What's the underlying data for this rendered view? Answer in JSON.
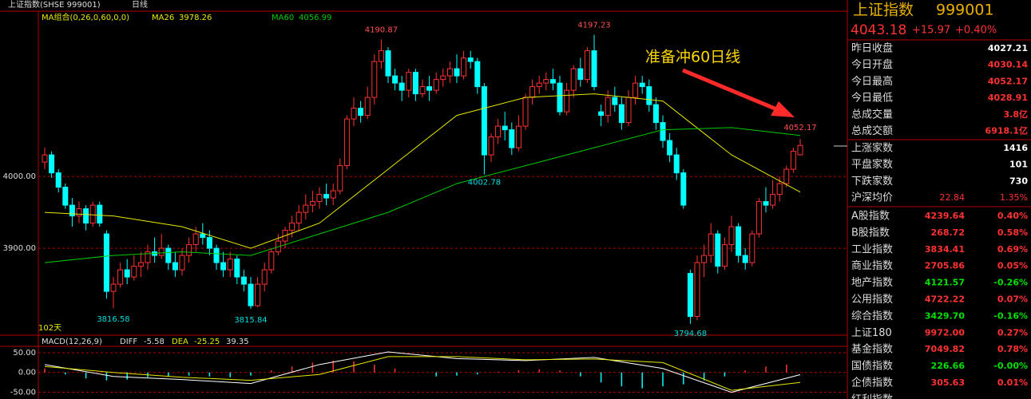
{
  "chart_data": {
    "type": "candlestick",
    "title": "上证指数(SHSE 999001)",
    "period": "日线",
    "legend": "MA组合(0,26,0,60,0,0)",
    "days_label": "102天",
    "annotation": "准备冲60日线",
    "up_color": "#ff3232",
    "down_color": "#00ffff",
    "ylim": [
      3779,
      4229
    ],
    "yticks": [
      {
        "value": 4000,
        "label": "4000.00"
      },
      {
        "value": 3900,
        "label": "3900.00"
      }
    ],
    "candles": [
      [
        4020,
        4030,
        4040,
        4010
      ],
      [
        4030,
        4005,
        4035,
        3998
      ],
      [
        4005,
        3985,
        4010,
        3978
      ],
      [
        3985,
        3960,
        3990,
        3955
      ],
      [
        3960,
        3945,
        3970,
        3930
      ],
      [
        3945,
        3955,
        3965,
        3935
      ],
      [
        3955,
        3935,
        3960,
        3925
      ],
      [
        3935,
        3960,
        3965,
        3930
      ],
      [
        3960,
        3935,
        3965,
        3930
      ],
      [
        3920,
        3840,
        3925,
        3830
      ],
      [
        3840,
        3850,
        3860,
        3816.58
      ],
      [
        3850,
        3870,
        3880,
        3845
      ],
      [
        3870,
        3860,
        3885,
        3850
      ],
      [
        3860,
        3875,
        3890,
        3855
      ],
      [
        3875,
        3880,
        3895,
        3860
      ],
      [
        3880,
        3895,
        3905,
        3870
      ],
      [
        3895,
        3890,
        3915,
        3880
      ],
      [
        3890,
        3900,
        3920,
        3885
      ],
      [
        3900,
        3880,
        3905,
        3870
      ],
      [
        3880,
        3870,
        3895,
        3860
      ],
      [
        3870,
        3890,
        3900,
        3862
      ],
      [
        3890,
        3905,
        3915,
        3880
      ],
      [
        3905,
        3920,
        3930,
        3895
      ],
      [
        3920,
        3915,
        3935,
        3905
      ],
      [
        3915,
        3900,
        3925,
        3890
      ],
      [
        3900,
        3880,
        3905,
        3870
      ],
      [
        3880,
        3870,
        3895,
        3860
      ],
      [
        3870,
        3885,
        3895,
        3860
      ],
      [
        3885,
        3860,
        3890,
        3850
      ],
      [
        3860,
        3850,
        3870,
        3840
      ],
      [
        3850,
        3820,
        3860,
        3815.84
      ],
      [
        3820,
        3850,
        3860,
        3818
      ],
      [
        3850,
        3870,
        3880,
        3840
      ],
      [
        3870,
        3895,
        3900,
        3865
      ],
      [
        3895,
        3910,
        3920,
        3890
      ],
      [
        3910,
        3925,
        3930,
        3900
      ],
      [
        3925,
        3935,
        3945,
        3915
      ],
      [
        3935,
        3950,
        3960,
        3925
      ],
      [
        3950,
        3960,
        3975,
        3940
      ],
      [
        3960,
        3965,
        3980,
        3950
      ],
      [
        3965,
        3975,
        3985,
        3955
      ],
      [
        3975,
        3970,
        3990,
        3960
      ],
      [
        3970,
        3980,
        3990,
        3960
      ],
      [
        3980,
        4015,
        4025,
        3975
      ],
      [
        4015,
        4080,
        4085,
        4010
      ],
      [
        4080,
        4095,
        4110,
        4070
      ],
      [
        4095,
        4085,
        4105,
        4075
      ],
      [
        4085,
        4110,
        4125,
        4080
      ],
      [
        4110,
        4160,
        4170,
        4100
      ],
      [
        4160,
        4175,
        4190.87,
        4150
      ],
      [
        4175,
        4140,
        4180,
        4130
      ],
      [
        4140,
        4130,
        4150,
        4120
      ],
      [
        4130,
        4120,
        4140,
        4105
      ],
      [
        4120,
        4145,
        4150,
        4110
      ],
      [
        4145,
        4115,
        4150,
        4105
      ],
      [
        4115,
        4125,
        4135,
        4110
      ],
      [
        4125,
        4120,
        4140,
        4105
      ],
      [
        4120,
        4135,
        4145,
        4115
      ],
      [
        4135,
        4140,
        4150,
        4125
      ],
      [
        4140,
        4150,
        4160,
        4130
      ],
      [
        4150,
        4140,
        4170,
        4130
      ],
      [
        4140,
        4165,
        4175,
        4135
      ],
      [
        4165,
        4160,
        4175,
        4150
      ],
      [
        4160,
        4125,
        4165,
        4115
      ],
      [
        4125,
        4030,
        4130,
        4002.78
      ],
      [
        4030,
        4055,
        4060,
        4020
      ],
      [
        4055,
        4070,
        4080,
        4045
      ],
      [
        4070,
        4065,
        4090,
        4050
      ],
      [
        4065,
        4040,
        4075,
        4030
      ],
      [
        4040,
        4070,
        4085,
        4035
      ],
      [
        4070,
        4110,
        4115,
        4065
      ],
      [
        4110,
        4125,
        4135,
        4100
      ],
      [
        4125,
        4130,
        4140,
        4115
      ],
      [
        4130,
        4135,
        4145,
        4120
      ],
      [
        4135,
        4130,
        4150,
        4120
      ],
      [
        4130,
        4090,
        4140,
        4085
      ],
      [
        4090,
        4120,
        4130,
        4085
      ],
      [
        4120,
        4150,
        4155,
        4110
      ],
      [
        4150,
        4135,
        4165,
        4125
      ],
      [
        4135,
        4175,
        4180,
        4130
      ],
      [
        4175,
        4125,
        4197.23,
        4120
      ],
      [
        4090,
        4085,
        4100,
        4070
      ],
      [
        4085,
        4110,
        4120,
        4075
      ],
      [
        4110,
        4100,
        4125,
        4090
      ],
      [
        4100,
        4075,
        4110,
        4065
      ],
      [
        4075,
        4110,
        4120,
        4070
      ],
      [
        4110,
        4130,
        4140,
        4100
      ],
      [
        4130,
        4125,
        4140,
        4115
      ],
      [
        4125,
        4100,
        4135,
        4090
      ],
      [
        4100,
        4075,
        4110,
        4065
      ],
      [
        4075,
        4050,
        4085,
        4040
      ],
      [
        4050,
        4030,
        4060,
        4020
      ],
      [
        4030,
        4005,
        4040,
        3995
      ],
      [
        4005,
        3960,
        4010,
        3955
      ],
      [
        3865,
        3805,
        3870,
        3794.68
      ],
      [
        3805,
        3880,
        3890,
        3800
      ],
      [
        3880,
        3890,
        3905,
        3860
      ],
      [
        3890,
        3920,
        3935,
        3880
      ],
      [
        3920,
        3875,
        3925,
        3865
      ],
      [
        3875,
        3905,
        3915,
        3870
      ],
      [
        3905,
        3930,
        3945,
        3895
      ],
      [
        3930,
        3890,
        3935,
        3880
      ],
      [
        3890,
        3880,
        3900,
        3870
      ],
      [
        3880,
        3920,
        3925,
        3875
      ],
      [
        3920,
        3965,
        3970,
        3915
      ],
      [
        3965,
        3960,
        3985,
        3950
      ],
      [
        3960,
        3975,
        3995,
        3955
      ],
      [
        3975,
        3990,
        4000,
        3965
      ],
      [
        3990,
        4010,
        4015,
        3985
      ],
      [
        4010,
        4035,
        4040,
        4005
      ],
      [
        4030.14,
        4043.18,
        4052.17,
        4028.91
      ]
    ],
    "ma_x": [
      0,
      10,
      20,
      30,
      40,
      50,
      60,
      70,
      80,
      90,
      100,
      110
    ],
    "series": [
      {
        "name": "MA26",
        "color": "#e8e800",
        "values": [
          3950,
          3945,
          3930,
          3900,
          3935,
          4010,
          4085,
          4110,
          4115,
          4105,
          4030,
          3978.26
        ]
      },
      {
        "name": "MA60",
        "color": "#00cc00",
        "values": [
          3880,
          3890,
          3895,
          3890,
          3920,
          3950,
          3990,
          4015,
          4040,
          4065,
          4068,
          4056.99
        ]
      }
    ],
    "macd": {
      "title": "MACD(12,26,9)",
      "ylim": [
        -61,
        62
      ],
      "yticks": [
        {
          "value": 50,
          "label": "50.00"
        },
        {
          "value": 0,
          "label": "0.00"
        },
        {
          "value": -50,
          "label": "-50.00"
        }
      ],
      "macd_value": "39.35",
      "diff": {
        "name": "DIFF",
        "color": "#ffffff",
        "values": [
          20,
          -10,
          -18,
          -28,
          20,
          52,
          35,
          30,
          38,
          10,
          -50,
          -5.58
        ]
      },
      "dea": {
        "name": "DEA",
        "color": "#e8e800",
        "values": [
          15,
          0,
          -12,
          -20,
          -5,
          40,
          40,
          32,
          34,
          25,
          -45,
          -25.25
        ]
      },
      "hist_x": [
        0,
        3,
        6,
        9,
        12,
        15,
        18,
        21,
        24,
        27,
        30,
        33,
        36,
        39,
        42,
        45,
        48,
        51,
        54,
        57,
        60,
        63,
        66,
        69,
        72,
        75,
        78,
        81,
        84,
        87,
        90,
        93,
        96,
        99,
        102,
        105,
        108
      ],
      "hist": [
        10,
        -5,
        -15,
        -20,
        -18,
        -12,
        -10,
        -8,
        -10,
        -12,
        -8,
        5,
        15,
        25,
        30,
        28,
        20,
        10,
        0,
        -10,
        -8,
        -5,
        2,
        6,
        8,
        5,
        -10,
        -25,
        -35,
        -40,
        -35,
        -30,
        -20,
        -10,
        5,
        15,
        20
      ]
    }
  },
  "sidebar": {
    "name": "上证指数",
    "code": "999001",
    "price": "4043.18",
    "change": "+15.97",
    "pct": "+0.40%",
    "quote": [
      {
        "label": "昨日收盘",
        "value": "4027.21",
        "color": "#ffffff"
      },
      {
        "label": "今日开盘",
        "value": "4030.14",
        "color": "#ff3232"
      },
      {
        "label": "今日最高",
        "value": "4052.17",
        "color": "#ff3232"
      },
      {
        "label": "今日最低",
        "value": "4028.91",
        "color": "#ff3232"
      },
      {
        "label": "总成交量",
        "value": "3.8亿",
        "color": "#ff3232"
      },
      {
        "label": "总成交额",
        "value": "6918.1亿",
        "color": "#ff3232"
      }
    ],
    "breadth": [
      {
        "label": "上涨家数",
        "value": "1416",
        "color": "#ffffff"
      },
      {
        "label": "平盘家数",
        "value": "101",
        "color": "#ffffff"
      },
      {
        "label": "下跌家数",
        "value": "730",
        "color": "#ffffff"
      }
    ],
    "avg": {
      "label": "沪深均价",
      "value": "22.84",
      "pct": "1.35%"
    },
    "indices": [
      {
        "label": "A股指数",
        "value": "4239.64",
        "pct": "0.40%",
        "color": "#ff3232"
      },
      {
        "label": "B股指数",
        "value": "268.72",
        "pct": "0.58%",
        "color": "#ff3232"
      },
      {
        "label": "工业指数",
        "value": "3834.41",
        "pct": "0.69%",
        "color": "#ff3232"
      },
      {
        "label": "商业指数",
        "value": "2705.86",
        "pct": "0.05%",
        "color": "#ff3232"
      },
      {
        "label": "地产指数",
        "value": "4121.57",
        "pct": "-0.26%",
        "color": "#00e000"
      },
      {
        "label": "公用指数",
        "value": "4722.22",
        "pct": "0.07%",
        "color": "#ff3232"
      },
      {
        "label": "综合指数",
        "value": "3429.70",
        "pct": "-0.16%",
        "color": "#00e000"
      },
      {
        "label": "上证180",
        "value": "9972.00",
        "pct": "0.27%",
        "color": "#ff3232"
      },
      {
        "label": "基金指数",
        "value": "7049.82",
        "pct": "0.78%",
        "color": "#ff3232"
      },
      {
        "label": "国债指数",
        "value": "226.66",
        "pct": "-0.00%",
        "color": "#00e000"
      },
      {
        "label": "企债指数",
        "value": "305.63",
        "pct": "0.01%",
        "color": "#ff3232"
      },
      {
        "label": "红利指数"
      }
    ]
  }
}
